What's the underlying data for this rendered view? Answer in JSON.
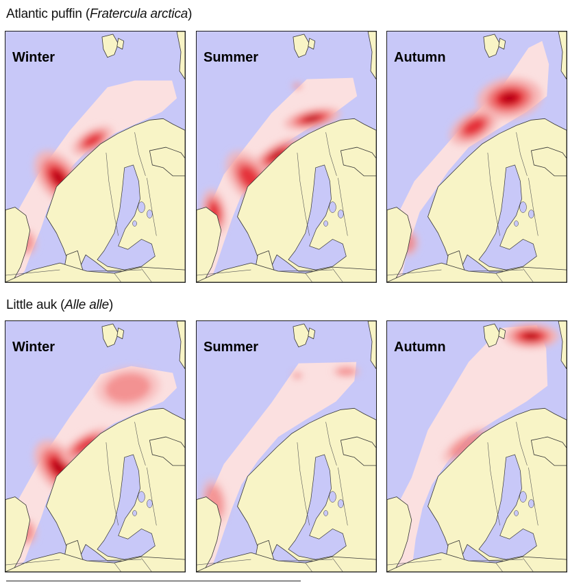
{
  "rows": [
    {
      "title_common": "Atlantic puffin",
      "title_latin": "Fratercula arctica",
      "panels": [
        {
          "season": "Winter",
          "hotspots": [
            {
              "region": "mid-norway-coast",
              "intensity": 0.85
            },
            {
              "region": "vesteralen-coast",
              "intensity": 0.6
            },
            {
              "region": "north-sea-west",
              "intensity": 0.3
            }
          ]
        },
        {
          "season": "Summer",
          "hotspots": [
            {
              "region": "finnmark-coast",
              "intensity": 0.95
            },
            {
              "region": "lofoten-coast",
              "intensity": 0.8
            },
            {
              "region": "mid-norway-coast",
              "intensity": 0.55
            },
            {
              "region": "scotland-coast",
              "intensity": 0.6
            },
            {
              "region": "svalbard-south",
              "intensity": 0.3
            }
          ]
        },
        {
          "season": "Autumn",
          "hotspots": [
            {
              "region": "barents-sea",
              "intensity": 0.9
            },
            {
              "region": "norwegian-sea-north",
              "intensity": 0.6
            },
            {
              "region": "north-sea-west",
              "intensity": 0.35
            }
          ]
        }
      ]
    },
    {
      "title_common": "Little auk",
      "title_latin": "Alle alle",
      "panels": [
        {
          "season": "Winter",
          "hotspots": [
            {
              "region": "mid-norway-coast",
              "intensity": 0.95
            },
            {
              "region": "lofoten-coast",
              "intensity": 0.5
            },
            {
              "region": "north-sea-west",
              "intensity": 0.4
            },
            {
              "region": "barents-sea",
              "intensity": 0.3
            }
          ]
        },
        {
          "season": "Summer",
          "hotspots": [
            {
              "region": "svalbard-south",
              "intensity": 0.35
            },
            {
              "region": "barents-sea-edge",
              "intensity": 0.3
            },
            {
              "region": "scotland-coast",
              "intensity": 0.25
            }
          ]
        },
        {
          "season": "Autumn",
          "hotspots": [
            {
              "region": "svalbard-east",
              "intensity": 1.0
            },
            {
              "region": "lofoten-coast",
              "intensity": 0.35
            }
          ]
        }
      ]
    }
  ],
  "colors": {
    "sea": "#c8c8f8",
    "land": "#f8f4c6",
    "range": "#fbe0e0",
    "low": "#f6b4b4",
    "mid": "#f07070",
    "high": "#e01020",
    "peak": "#b00010"
  }
}
